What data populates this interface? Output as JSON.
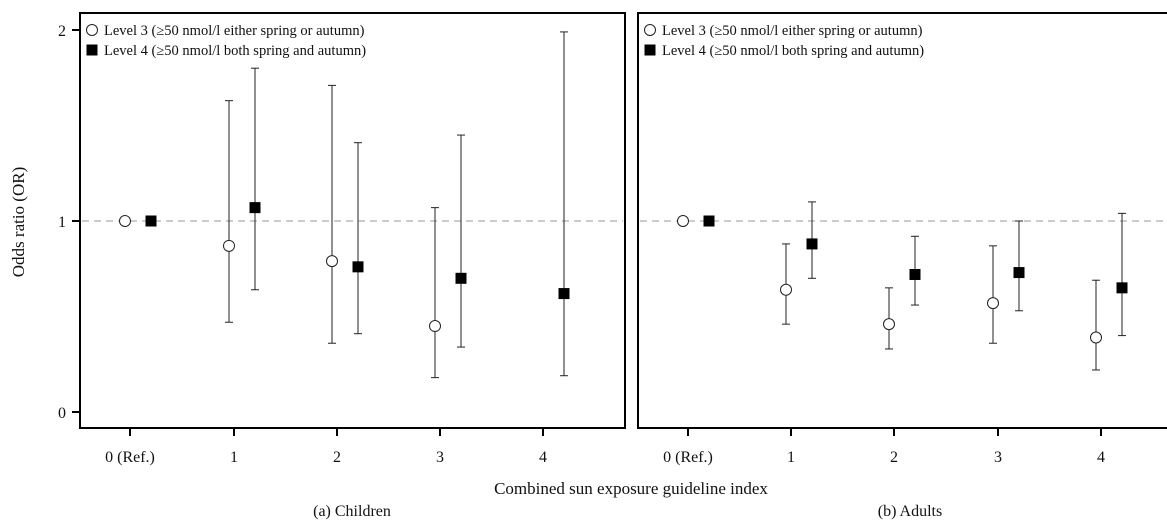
{
  "figure": {
    "ylabel": "Odds ratio (OR)",
    "xlabel": "Combined sun exposure guideline index",
    "legend": {
      "level3": "Level 3 (≥50 nmol/l either spring or autumn)",
      "level4": "Level 4 (≥50 nmol/l both spring and autumn)"
    }
  },
  "chart_data": [
    {
      "type": "scatter",
      "title": "(a) Children",
      "xlabel": "Combined sun exposure guideline index",
      "ylabel": "Odds ratio (OR)",
      "categories": [
        "0 (Ref.)",
        "1",
        "2",
        "3",
        "4"
      ],
      "yticks": [
        "0",
        "1",
        "2"
      ],
      "ylim": [
        0,
        2
      ],
      "reference_line": 1,
      "legend_position": "top-left",
      "series": [
        {
          "name": "Level 3 (≥50 nmol/l either spring or autumn)",
          "marker": "open-circle",
          "values": [
            1.0,
            0.87,
            0.79,
            0.45,
            null
          ],
          "lower": [
            null,
            0.47,
            0.36,
            0.18,
            null
          ],
          "upper": [
            null,
            1.63,
            1.71,
            1.07,
            null
          ]
        },
        {
          "name": "Level 4 (≥50 nmol/l both spring and autumn)",
          "marker": "filled-square",
          "values": [
            1.0,
            1.07,
            0.76,
            0.7,
            0.62
          ],
          "lower": [
            null,
            0.64,
            0.41,
            0.34,
            0.19
          ],
          "upper": [
            null,
            1.8,
            1.41,
            1.45,
            1.99
          ]
        }
      ]
    },
    {
      "type": "scatter",
      "title": "(b) Adults",
      "xlabel": "Combined sun exposure guideline index",
      "ylabel": "",
      "categories": [
        "0 (Ref.)",
        "1",
        "2",
        "3",
        "4"
      ],
      "yticks": [],
      "ylim": [
        0,
        2
      ],
      "reference_line": 1,
      "legend_position": "top-left",
      "series": [
        {
          "name": "Level 3 (≥50 nmol/l either spring or autumn)",
          "marker": "open-circle",
          "values": [
            1.0,
            0.64,
            0.46,
            0.57,
            0.39
          ],
          "lower": [
            null,
            0.46,
            0.33,
            0.36,
            0.22
          ],
          "upper": [
            null,
            0.88,
            0.65,
            0.87,
            0.69
          ]
        },
        {
          "name": "Level 4 (≥50 nmol/l both spring and autumn)",
          "marker": "filled-square",
          "values": [
            1.0,
            0.88,
            0.72,
            0.73,
            0.65
          ],
          "lower": [
            null,
            0.7,
            0.56,
            0.53,
            0.4
          ],
          "upper": [
            null,
            1.1,
            0.92,
            1.0,
            1.04
          ]
        }
      ]
    }
  ]
}
